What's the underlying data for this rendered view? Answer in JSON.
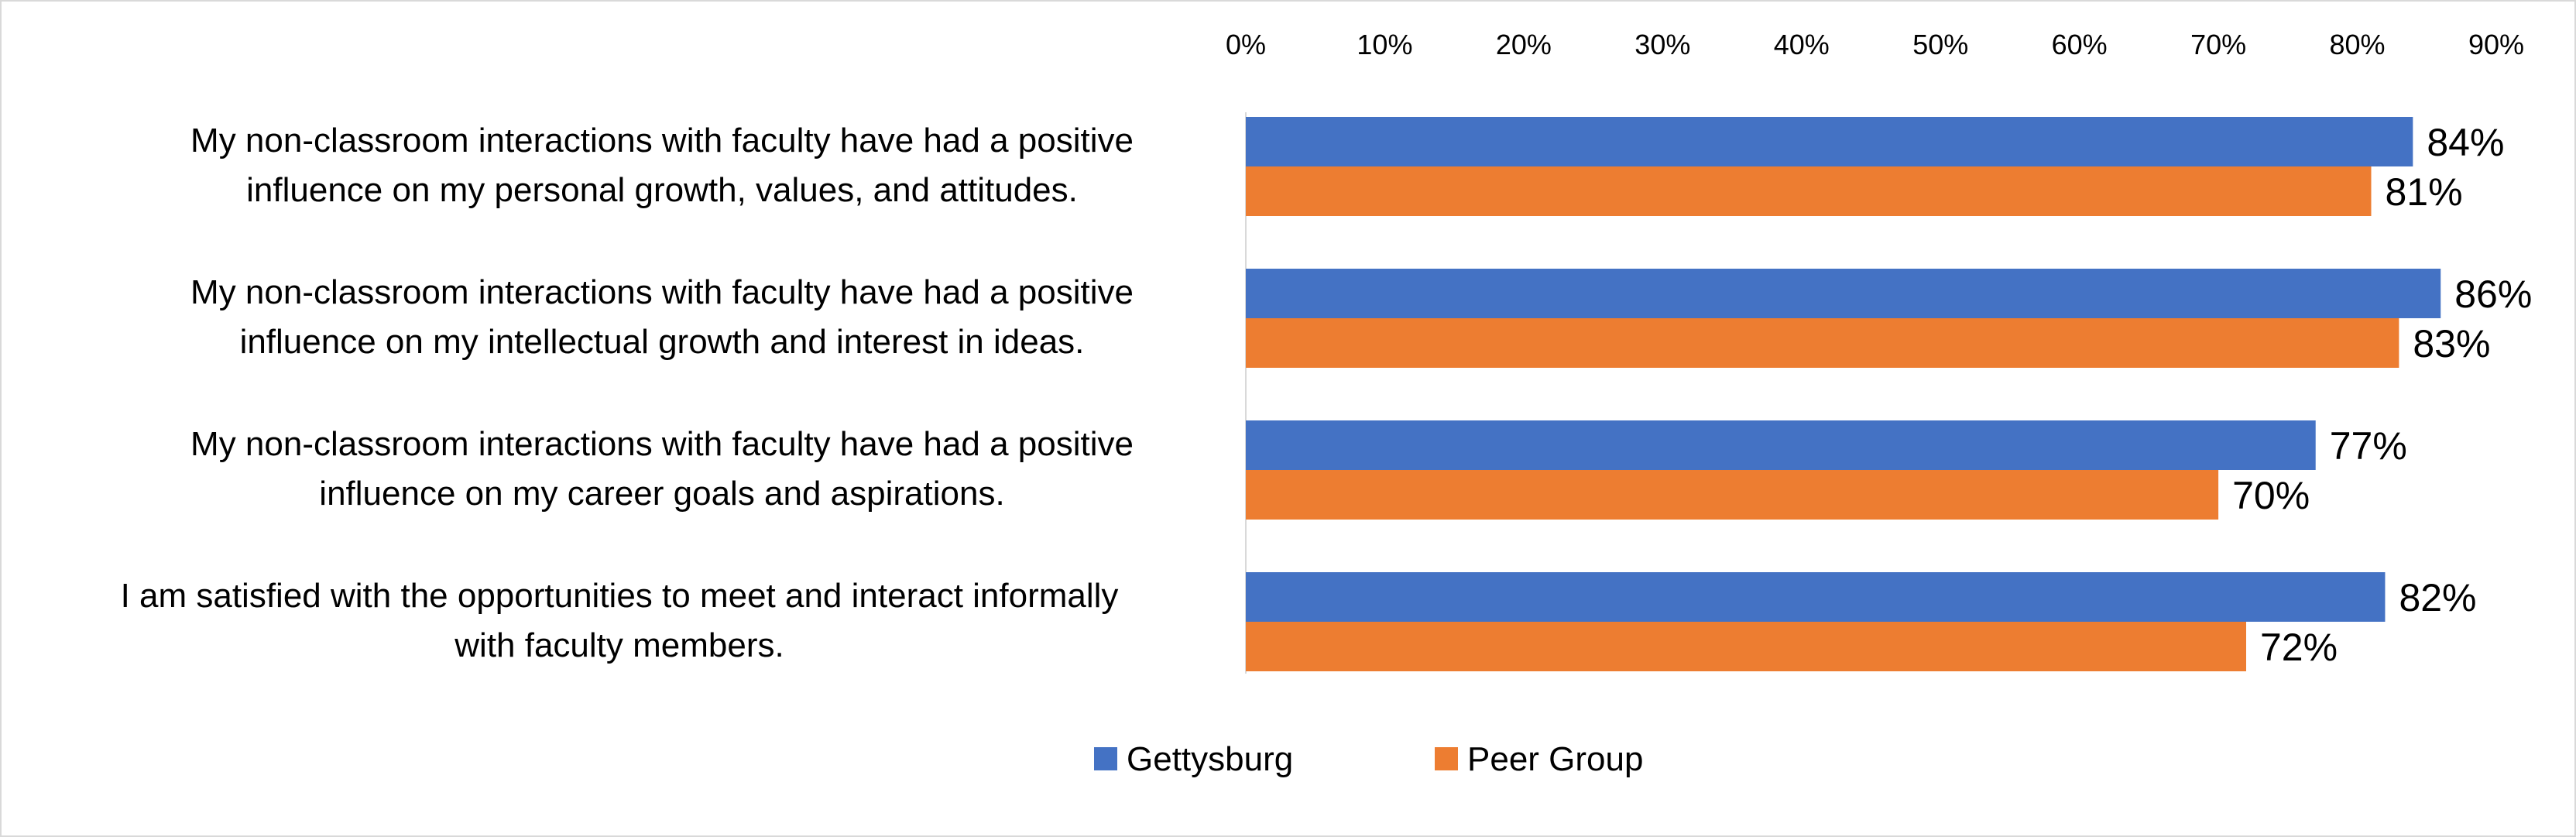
{
  "chart_data": {
    "type": "bar",
    "orientation": "horizontal",
    "title": "",
    "xlabel": "",
    "ylabel": "",
    "xlim": [
      0,
      90
    ],
    "ticks": [
      "0%",
      "10%",
      "20%",
      "30%",
      "40%",
      "50%",
      "60%",
      "70%",
      "80%",
      "90%"
    ],
    "tick_values": [
      0,
      10,
      20,
      30,
      40,
      50,
      60,
      70,
      80,
      90
    ],
    "axis_position": "top",
    "grid": false,
    "legend_position": "bottom",
    "categories": [
      [
        "My non-classroom interactions with faculty have had a positive",
        "influence on my personal growth, values, and attitudes."
      ],
      [
        "My non-classroom interactions with faculty have had a positive",
        "influence on my intellectual growth and interest in ideas."
      ],
      [
        "My non-classroom interactions with faculty have had a positive",
        "influence on my career goals and aspirations."
      ],
      [
        "I am satisfied with the opportunities to meet and interact informally",
        "with faculty members."
      ]
    ],
    "series": [
      {
        "name": "Gettysburg",
        "color": "#4472C4",
        "values": [
          84,
          86,
          77,
          82
        ],
        "labels": [
          "84%",
          "86%",
          "77%",
          "82%"
        ]
      },
      {
        "name": "Peer Group",
        "color": "#ED7D31",
        "values": [
          81,
          83,
          70,
          72
        ],
        "labels": [
          "81%",
          "83%",
          "70%",
          "72%"
        ]
      }
    ]
  }
}
